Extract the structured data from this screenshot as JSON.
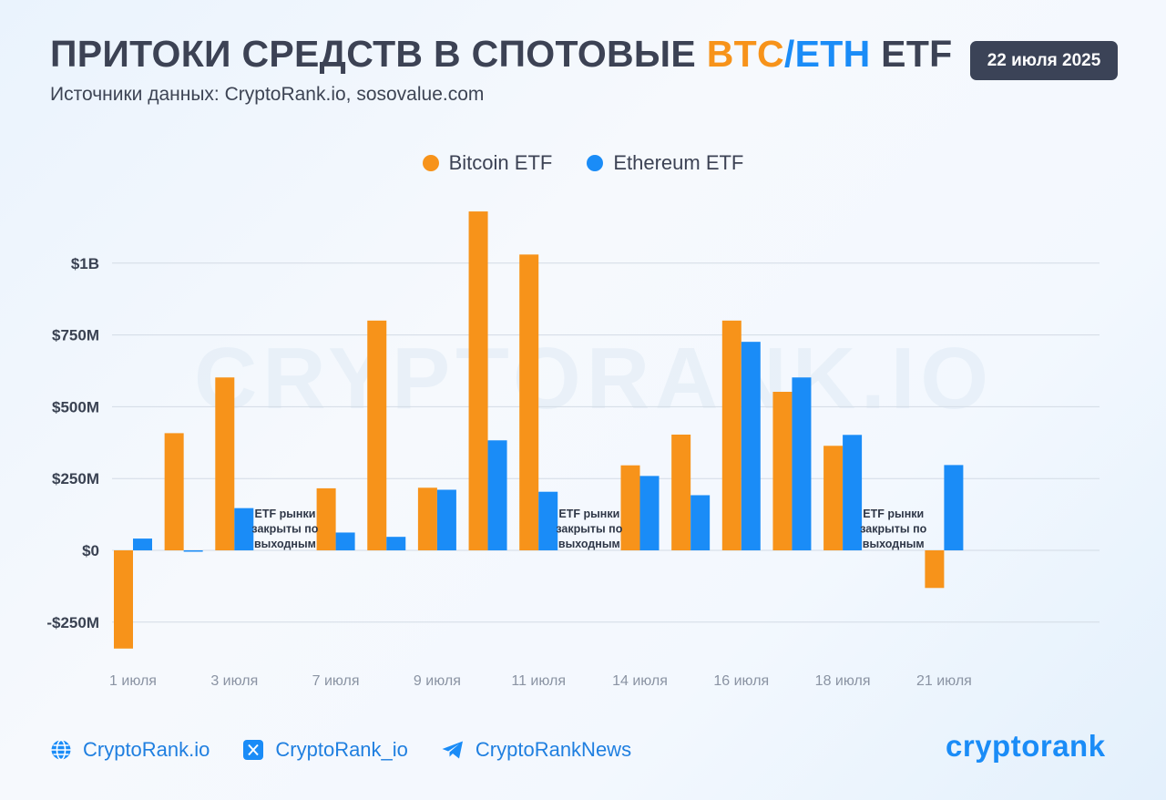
{
  "header": {
    "title_prefix": "ПРИТОКИ СРЕДСТВ В СПОТОВЫЕ ",
    "title_btc": "BTC",
    "title_slash": "/",
    "title_eth": "ETH",
    "title_suffix": " ETF",
    "subtitle": "Источники данных: CryptoRank.io, sosovalue.com",
    "date": "22 июля 2025"
  },
  "legend": {
    "btc": "Bitcoin ETF",
    "eth": "Ethereum ETF"
  },
  "colors": {
    "btc": "#f7931a",
    "eth": "#1a8cf7",
    "badge_bg": "#3b4357"
  },
  "chart_data": {
    "type": "bar",
    "title": "ПРИТОКИ СРЕДСТВ В СПОТОВЫЕ BTC/ETH ETF",
    "xlabel": "",
    "ylabel": "",
    "ylim": [
      -350,
      1200
    ],
    "units": "USD millions",
    "yticks": [
      -250,
      0,
      250,
      500,
      750,
      1000
    ],
    "ytick_labels": [
      "-$250M",
      "$0",
      "$250M",
      "$500M",
      "$750M",
      "$1B"
    ],
    "grid": true,
    "watermark": "CRYPTORANK.IO",
    "slots": [
      "1 июля",
      "2 июля",
      "3 июля",
      "closed-1",
      "7 июля",
      "8 июля",
      "9 июля",
      "10 июля",
      "11 июля",
      "closed-2",
      "14 июля",
      "15 июля",
      "16 июля",
      "17 июля",
      "18 июля",
      "closed-3",
      "21 июля"
    ],
    "tick_labels": [
      {
        "slot": 0,
        "label": "1 июля"
      },
      {
        "slot": 2,
        "label": "3 июля"
      },
      {
        "slot": 4,
        "label": "7 июля"
      },
      {
        "slot": 6,
        "label": "9 июля"
      },
      {
        "slot": 8,
        "label": "11 июля"
      },
      {
        "slot": 10,
        "label": "14 июля"
      },
      {
        "slot": 12,
        "label": "16 июля"
      },
      {
        "slot": 14,
        "label": "18 июля"
      },
      {
        "slot": 16,
        "label": "21 июля"
      }
    ],
    "series": [
      {
        "name": "Bitcoin ETF",
        "values": [
          -342,
          408,
          602,
          null,
          216,
          800,
          218,
          1180,
          1030,
          null,
          296,
          403,
          800,
          552,
          364,
          null,
          -131
        ]
      },
      {
        "name": "Ethereum ETF",
        "values": [
          41,
          -2,
          147,
          null,
          62,
          47,
          211,
          383,
          204,
          null,
          259,
          192,
          726,
          602,
          402,
          null,
          297
        ]
      }
    ],
    "annotations": [
      {
        "slot": 3,
        "text": "ETF рынки закрыты по выходным"
      },
      {
        "slot": 9,
        "text": "ETF рынки закрыты по выходным"
      },
      {
        "slot": 15,
        "text": "ETF рынки закрыты по выходным"
      }
    ]
  },
  "footer": {
    "website": "CryptoRank.io",
    "twitter": "CryptoRank_io",
    "telegram": "CryptoRankNews",
    "logo": "cryptorank"
  }
}
